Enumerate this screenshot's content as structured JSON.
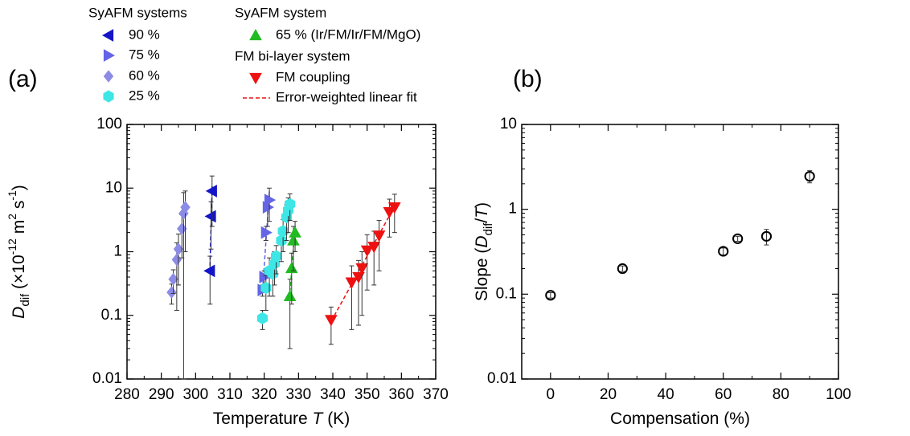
{
  "legend_headings": [
    "SyAFM systems",
    "SyAFM system",
    "FM bi-layer system"
  ],
  "fit_label": "Error-weighted linear fit",
  "chart_data": [
    {
      "type": "scatter",
      "title": "(a)",
      "xlabel": [
        {
          "text": "Temperature ",
          "style": "plain"
        },
        {
          "text": "T",
          "style": "italic"
        },
        {
          "text": " (K)",
          "style": "plain"
        }
      ],
      "ylabel": [
        {
          "text": "D",
          "style": "italic"
        },
        {
          "text": "dif",
          "style": "sub"
        },
        {
          "text": " (×10",
          "style": "plain"
        },
        {
          "text": "-12",
          "style": "sup"
        },
        {
          "text": " m",
          "style": "plain"
        },
        {
          "text": "2",
          "style": "sup"
        },
        {
          "text": " s",
          "style": "plain"
        },
        {
          "text": "-1",
          "style": "sup"
        },
        {
          "text": ")",
          "style": "plain"
        }
      ],
      "xlim": [
        280,
        370
      ],
      "xticks": [
        280,
        290,
        300,
        310,
        320,
        330,
        340,
        350,
        360,
        370
      ],
      "ylim": [
        0.01,
        100
      ],
      "yticks": [
        0.01,
        0.1,
        1,
        10,
        100
      ],
      "log_y": true,
      "series": [
        {
          "name": "90 %",
          "color": "#1414c8",
          "marker": "tri-left",
          "fit": true,
          "x": [
            304.2,
            304.5,
            304.8
          ],
          "values": [
            0.5,
            3.6,
            9
          ],
          "errors": [
            0.35,
            2.5,
            6.5
          ]
        },
        {
          "name": "75 %",
          "color": "#6464e6",
          "marker": "tri-right",
          "fit": true,
          "x": [
            319.5,
            320,
            320.5,
            321,
            321.5
          ],
          "values": [
            0.25,
            0.4,
            2.0,
            5.0,
            6.5
          ],
          "errors": [
            0.05,
            0.1,
            0.5,
            2.5,
            3.5
          ]
        },
        {
          "name": "60 %",
          "color": "#8c8ce6",
          "marker": "diamond",
          "fit": false,
          "x": [
            293,
            293.5,
            294.5,
            295,
            296,
            296.5,
            297
          ],
          "values": [
            0.23,
            0.37,
            0.75,
            1.1,
            2.3,
            4.0,
            5.0
          ],
          "errors": [
            0.08,
            0.15,
            0.63,
            0.8,
            1.5,
            4.5,
            4.0
          ]
        },
        {
          "name": "25 %",
          "color": "#3ee6e6",
          "marker": "hexagon",
          "fit": false,
          "x": [
            319.5,
            320.5,
            321.5,
            322.5,
            323,
            323.5,
            325,
            325.5,
            326.5,
            327,
            327.5
          ],
          "values": [
            0.09,
            0.27,
            0.5,
            0.45,
            0.65,
            0.85,
            1.5,
            2.1,
            3.5,
            4.5,
            5.6
          ],
          "errors": [
            0.03,
            0.15,
            0.3,
            0.25,
            0.35,
            0.4,
            0.8,
            1.1,
            2.0,
            2.5,
            2.5
          ]
        },
        {
          "name": "65 % (Ir/FM/Ir/FM/MgO)",
          "color": "#22bb22",
          "marker": "tri-up",
          "fit": true,
          "x": [
            327.5,
            328,
            328.5,
            329
          ],
          "values": [
            0.2,
            0.55,
            1.5,
            2.0
          ],
          "errors": [
            0.17,
            0.4,
            1.0,
            1.0
          ]
        },
        {
          "name": "FM coupling",
          "color": "#ee1111",
          "marker": "tri-down",
          "fit": true,
          "x": [
            339.5,
            345.5,
            347.5,
            348.5,
            350,
            352,
            353.5,
            356.5,
            358
          ],
          "values": [
            0.085,
            0.33,
            0.4,
            0.55,
            1.05,
            1.2,
            1.8,
            4.2,
            5.0
          ],
          "errors": [
            0.05,
            0.27,
            0.33,
            0.45,
            0.8,
            0.9,
            1.3,
            2.5,
            3.0
          ]
        }
      ]
    },
    {
      "type": "scatter",
      "title": "(b)",
      "xlabel": [
        {
          "text": "Compensation (%)",
          "style": "plain"
        }
      ],
      "ylabel": [
        {
          "text": "Slope (",
          "style": "plain"
        },
        {
          "text": "D",
          "style": "italic"
        },
        {
          "text": "dif",
          "style": "sub"
        },
        {
          "text": "/",
          "style": "plain"
        },
        {
          "text": "T",
          "style": "italic"
        },
        {
          "text": ")",
          "style": "plain"
        }
      ],
      "xlim": [
        -10,
        100
      ],
      "xticks": [
        0,
        20,
        40,
        60,
        80,
        100
      ],
      "ylim": [
        0.01,
        10
      ],
      "yticks": [
        0.01,
        0.1,
        1,
        10
      ],
      "log_y": true,
      "series": [
        {
          "color": "#000000",
          "marker": "circle",
          "fit": false,
          "x": [
            0,
            25,
            60,
            65,
            75,
            90
          ],
          "values": [
            0.097,
            0.2,
            0.32,
            0.45,
            0.48,
            2.45
          ],
          "errors": [
            0.007,
            0.015,
            0.03,
            0.03,
            0.1,
            0.4
          ]
        }
      ]
    }
  ]
}
